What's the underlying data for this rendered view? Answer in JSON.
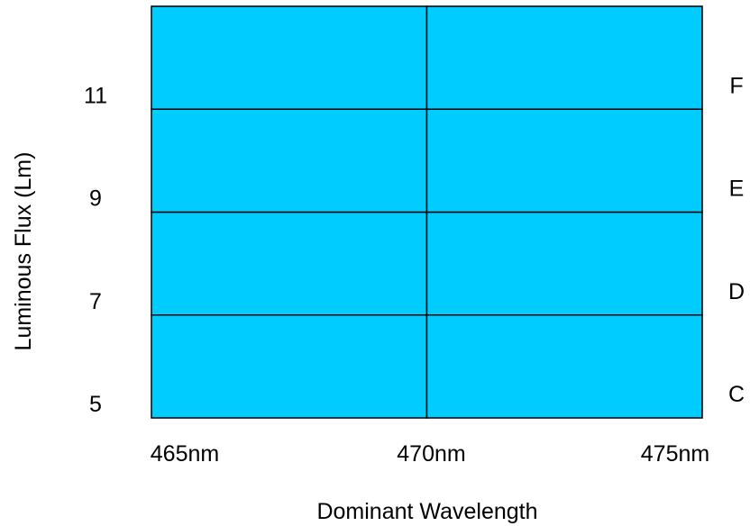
{
  "chart_data": {
    "type": "heatmap",
    "title": "",
    "xlabel": "Dominant Wavelength",
    "ylabel": "Luminous Flux (Lm)",
    "x_tick_labels": [
      "465nm",
      "470nm",
      "475nm"
    ],
    "x_ticks": [
      465,
      470,
      475
    ],
    "y_tick_labels": [
      "5",
      "7",
      "9",
      "11"
    ],
    "y_ticks": [
      5,
      7,
      9,
      11
    ],
    "bins": [
      {
        "label": "C",
        "flux_min": 5,
        "flux_max": 7
      },
      {
        "label": "D",
        "flux_min": 7,
        "flux_max": 9
      },
      {
        "label": "E",
        "flux_min": 9,
        "flux_max": 11
      },
      {
        "label": "F",
        "flux_min": 11,
        "flux_max": 13
      }
    ],
    "wavelength_bins": [
      {
        "min": 465,
        "max": 470
      },
      {
        "min": 470,
        "max": 475
      }
    ],
    "xlim": [
      465,
      475
    ],
    "ylim": [
      5,
      13
    ],
    "fill_color": "#00CCFF",
    "line_color": "#000000",
    "grid": false,
    "legend": "none"
  }
}
